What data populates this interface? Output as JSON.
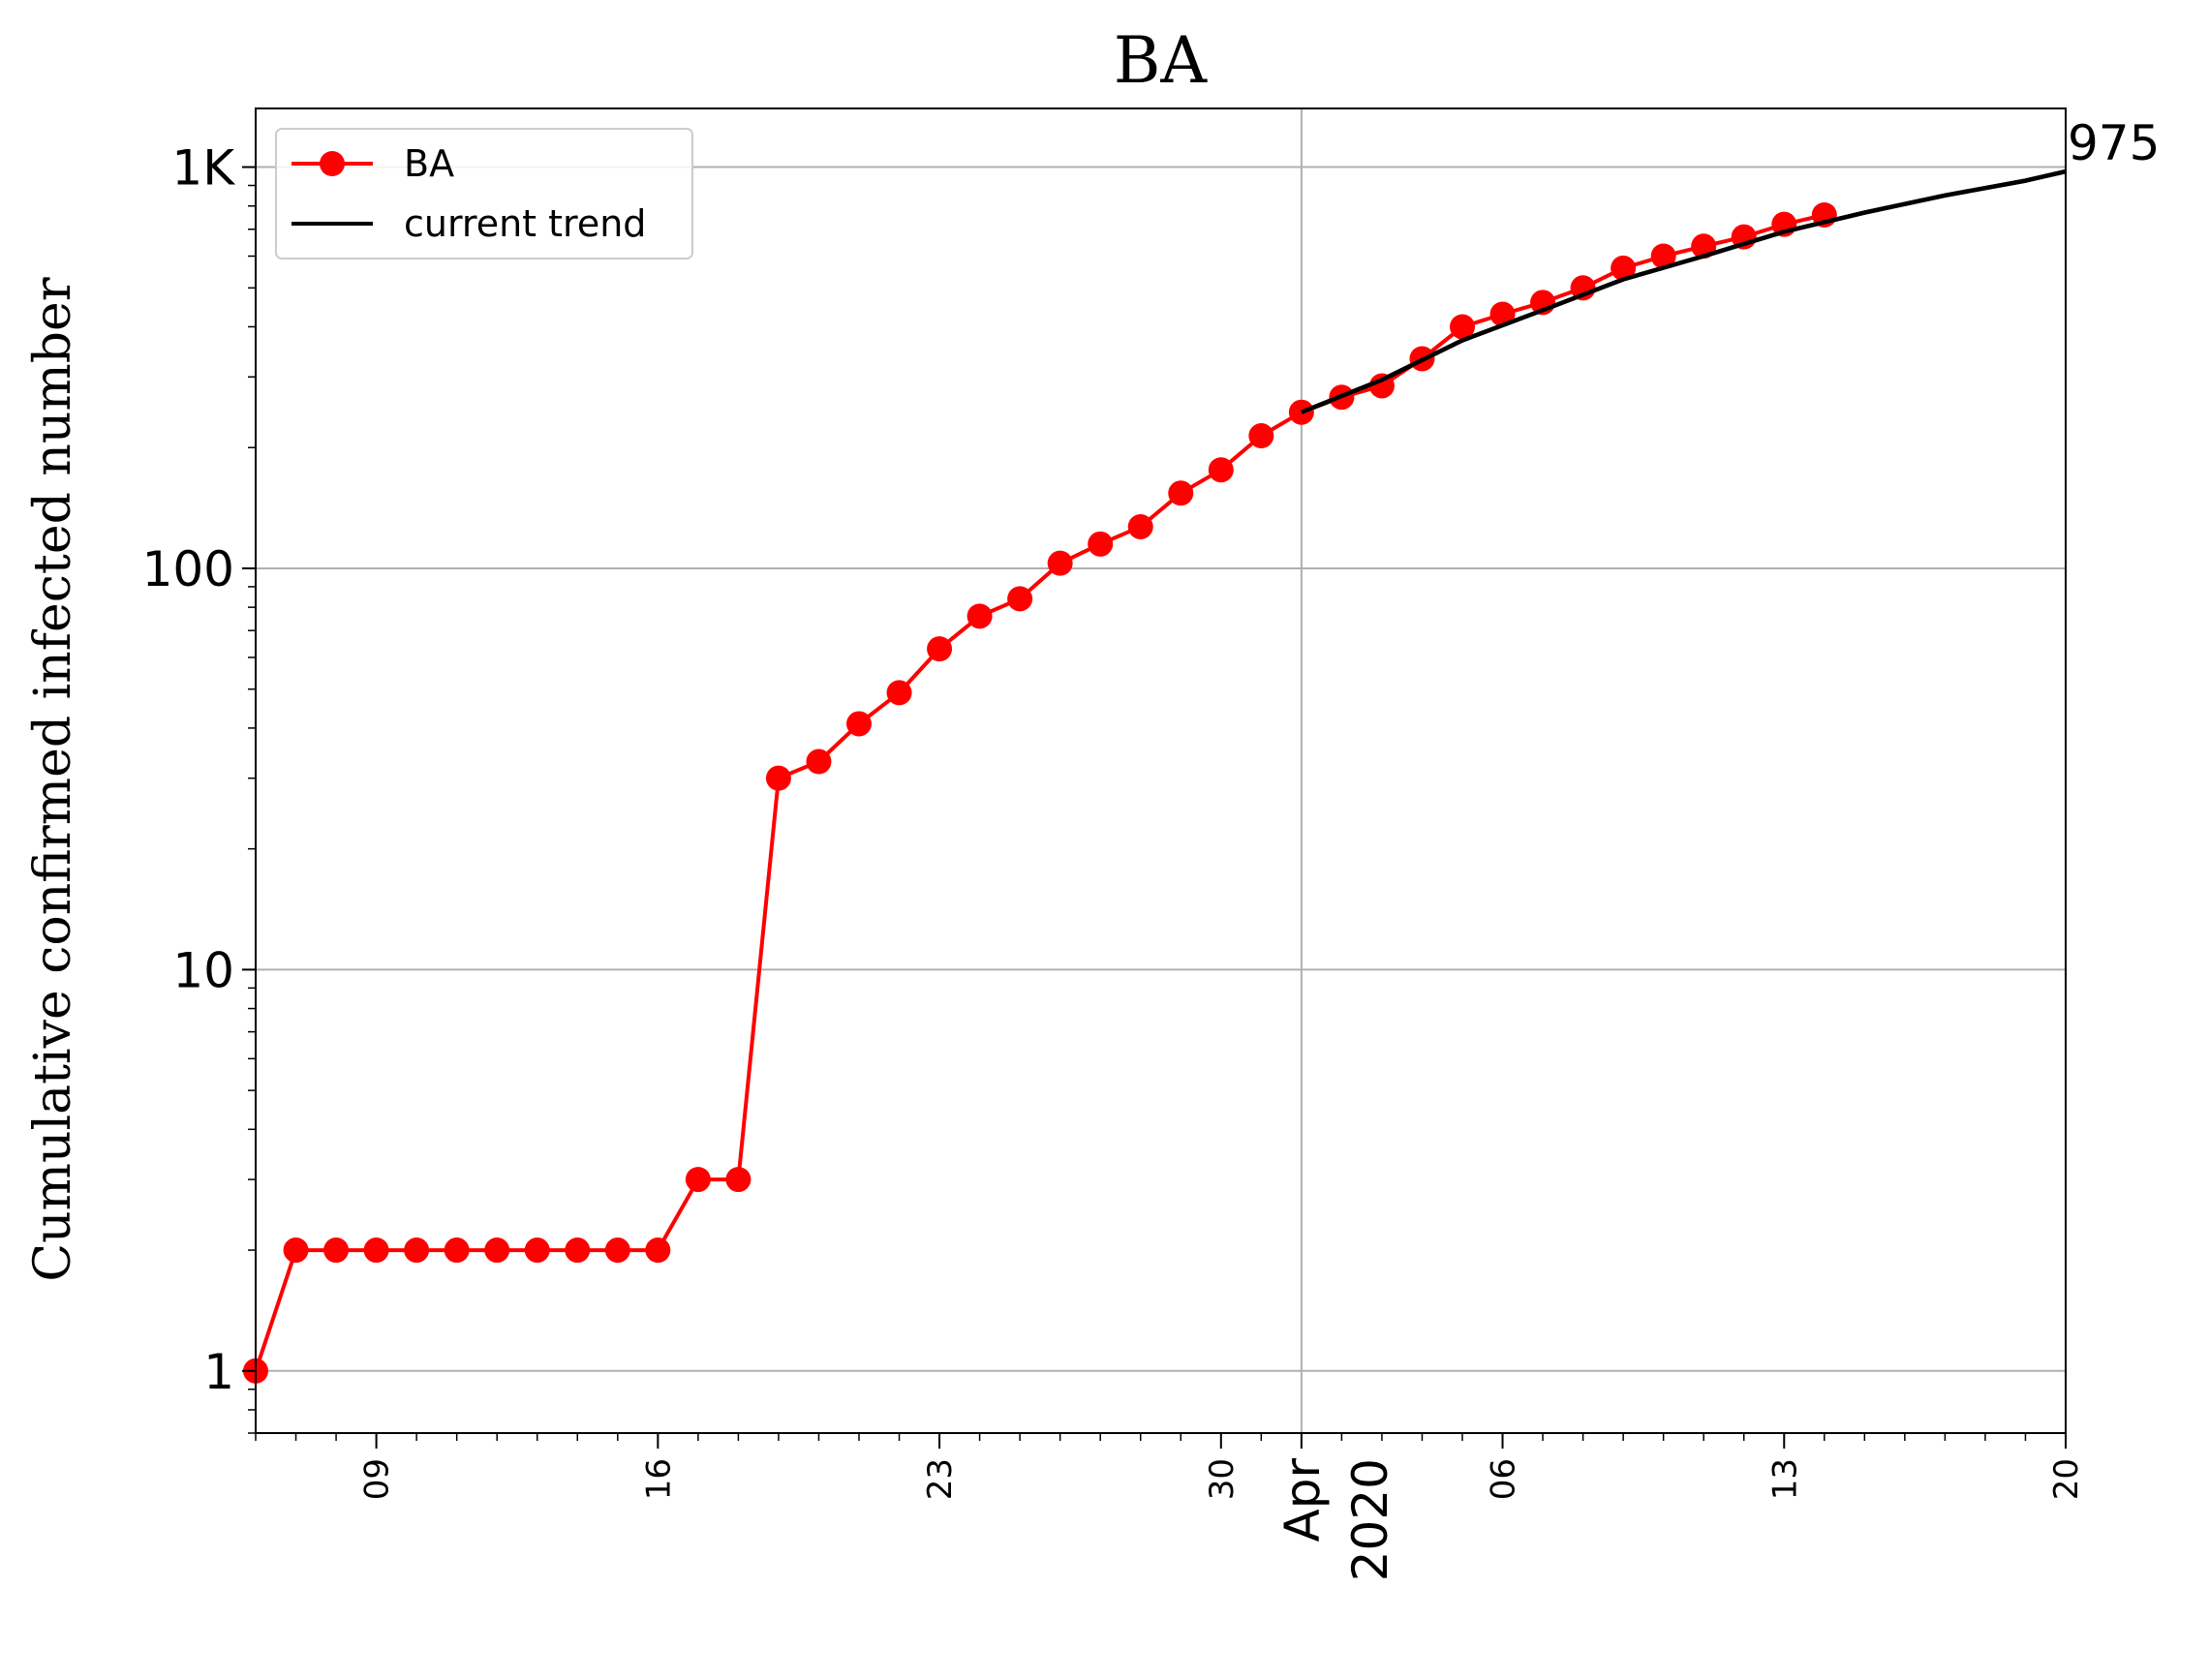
{
  "chart_data": {
    "type": "line",
    "title": "BA",
    "xlabel": "",
    "ylabel": "Cumulative confirmed infected number",
    "y_scale": "log",
    "ylim": [
      0.7,
      1400
    ],
    "xlim": [
      "2020-03-06",
      "2020-04-20"
    ],
    "grid": true,
    "legend_position": "top-left",
    "y_ticks": [
      {
        "value": 1,
        "label": "1"
      },
      {
        "value": 10,
        "label": "10"
      },
      {
        "value": 100,
        "label": "100"
      },
      {
        "value": 1000,
        "label": "1K"
      }
    ],
    "x_ticks": [
      {
        "date": "2020-03-09",
        "label": "09"
      },
      {
        "date": "2020-03-16",
        "label": "16"
      },
      {
        "date": "2020-03-23",
        "label": "23"
      },
      {
        "date": "2020-03-30",
        "label": "30"
      },
      {
        "date": "2020-04-06",
        "label": "06"
      },
      {
        "date": "2020-04-13",
        "label": "13"
      },
      {
        "date": "2020-04-20",
        "label": "20"
      }
    ],
    "x_month_label": {
      "date": "2020-04-01",
      "month": "Apr",
      "year": "2020"
    },
    "series": [
      {
        "name": "BA",
        "color": "#ff0000",
        "marker": "circle",
        "x": [
          "2020-03-06",
          "2020-03-07",
          "2020-03-08",
          "2020-03-09",
          "2020-03-10",
          "2020-03-11",
          "2020-03-12",
          "2020-03-13",
          "2020-03-14",
          "2020-03-15",
          "2020-03-16",
          "2020-03-17",
          "2020-03-18",
          "2020-03-19",
          "2020-03-20",
          "2020-03-21",
          "2020-03-22",
          "2020-03-23",
          "2020-03-24",
          "2020-03-25",
          "2020-03-26",
          "2020-03-27",
          "2020-03-28",
          "2020-03-29",
          "2020-03-30",
          "2020-03-31",
          "2020-04-01",
          "2020-04-02",
          "2020-04-03",
          "2020-04-04",
          "2020-04-05",
          "2020-04-06",
          "2020-04-07",
          "2020-04-08",
          "2020-04-09",
          "2020-04-10",
          "2020-04-11",
          "2020-04-12",
          "2020-04-13",
          "2020-04-14"
        ],
        "values": [
          1,
          2,
          2,
          2,
          2,
          2,
          2,
          2,
          2,
          2,
          2,
          3,
          3,
          30,
          33,
          41,
          49,
          63,
          76,
          84,
          103,
          115,
          127,
          154,
          176,
          214,
          245,
          267,
          285,
          333,
          400,
          430,
          460,
          500,
          560,
          600,
          635,
          670,
          720,
          760
        ]
      },
      {
        "name": "current trend",
        "color": "#000000",
        "marker": "none",
        "x": [
          "2020-04-01",
          "2020-04-03",
          "2020-04-05",
          "2020-04-07",
          "2020-04-09",
          "2020-04-11",
          "2020-04-13",
          "2020-04-15",
          "2020-04-17",
          "2020-04-19",
          "2020-04-20"
        ],
        "values": [
          245,
          295,
          370,
          440,
          525,
          600,
          690,
          770,
          850,
          925,
          975
        ]
      }
    ],
    "annotations": [
      {
        "text": "975",
        "date": "2020-04-20",
        "value": 975
      }
    ]
  }
}
